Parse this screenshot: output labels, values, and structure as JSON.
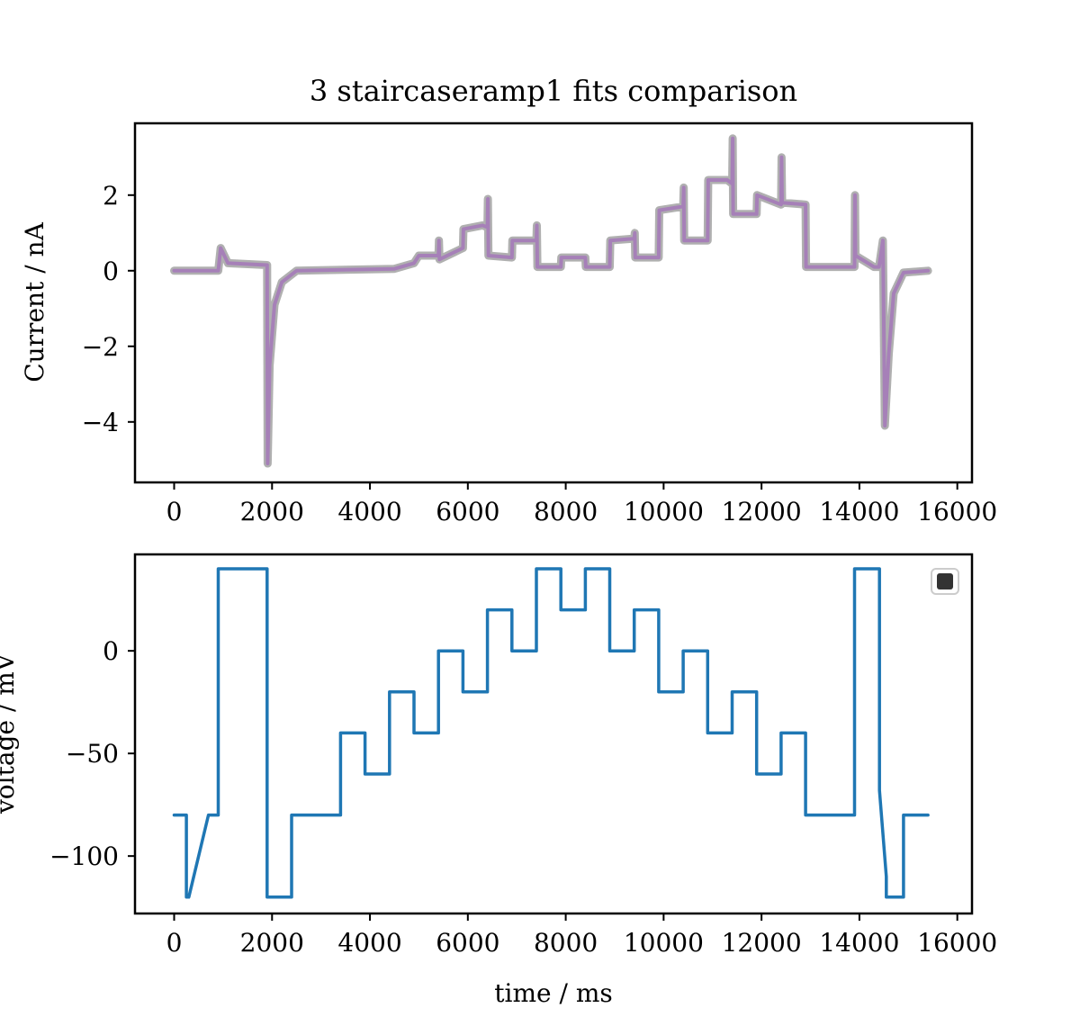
{
  "title": "3 staircaseramp1 fits comparison",
  "chart_data": [
    {
      "type": "line",
      "panel": "top",
      "xlim": [
        -800,
        16300
      ],
      "ylim": [
        -5.6,
        3.9
      ],
      "xticks": [
        0,
        2000,
        4000,
        6000,
        8000,
        10000,
        12000,
        14000,
        16000
      ],
      "yticks": [
        -4,
        -2,
        0,
        2
      ],
      "ytick_labels": [
        "−4",
        "−2",
        "0",
        "2"
      ],
      "xlabel": "",
      "ylabel": "Current / nA",
      "series": [
        {
          "name": "",
          "color": "#b0b0b0",
          "points": [
            [
              0,
              0
            ],
            [
              900,
              0
            ],
            [
              950,
              0.6
            ],
            [
              1100,
              0.2
            ],
            [
              1900,
              0.15
            ],
            [
              1910,
              -5.1
            ],
            [
              1950,
              -2.5
            ],
            [
              2050,
              -0.9
            ],
            [
              2200,
              -0.3
            ],
            [
              2500,
              0
            ],
            [
              4500,
              0.05
            ],
            [
              4900,
              0.2
            ],
            [
              5000,
              0.4
            ],
            [
              5400,
              0.4
            ],
            [
              5410,
              0.8
            ],
            [
              5420,
              0.3
            ],
            [
              5900,
              0.6
            ],
            [
              5910,
              1.1
            ],
            [
              6300,
              1.2
            ],
            [
              6400,
              1.15
            ],
            [
              6410,
              1.9
            ],
            [
              6420,
              0.4
            ],
            [
              6900,
              0.35
            ],
            [
              6910,
              0.8
            ],
            [
              7400,
              0.8
            ],
            [
              7410,
              1.2
            ],
            [
              7420,
              0.1
            ],
            [
              7900,
              0.1
            ],
            [
              7910,
              0.35
            ],
            [
              8400,
              0.35
            ],
            [
              8410,
              0.1
            ],
            [
              8900,
              0.1
            ],
            [
              8910,
              0.8
            ],
            [
              9400,
              0.85
            ],
            [
              9410,
              1.0
            ],
            [
              9420,
              0.35
            ],
            [
              9900,
              0.35
            ],
            [
              9910,
              1.6
            ],
            [
              10400,
              1.7
            ],
            [
              10410,
              2.2
            ],
            [
              10420,
              0.8
            ],
            [
              10900,
              0.8
            ],
            [
              10910,
              2.4
            ],
            [
              11300,
              2.4
            ],
            [
              11400,
              2.3
            ],
            [
              11410,
              3.5
            ],
            [
              11420,
              1.5
            ],
            [
              11900,
              1.5
            ],
            [
              11910,
              2.0
            ],
            [
              12400,
              1.75
            ],
            [
              12410,
              3.0
            ],
            [
              12420,
              1.8
            ],
            [
              12900,
              1.75
            ],
            [
              12910,
              0.1
            ],
            [
              13900,
              0.1
            ],
            [
              13910,
              2.0
            ],
            [
              13920,
              0.4
            ],
            [
              14300,
              0.1
            ],
            [
              14400,
              0.1
            ],
            [
              14480,
              0.8
            ],
            [
              14520,
              -4.1
            ],
            [
              14600,
              -2.2
            ],
            [
              14700,
              -0.6
            ],
            [
              14900,
              -0.05
            ],
            [
              15400,
              0
            ]
          ]
        },
        {
          "name": "",
          "color": "#a680b8",
          "points": [
            [
              0,
              0
            ],
            [
              900,
              0
            ],
            [
              950,
              0.6
            ],
            [
              1100,
              0.2
            ],
            [
              1900,
              0.15
            ],
            [
              1910,
              -5.1
            ],
            [
              1950,
              -2.5
            ],
            [
              2050,
              -0.9
            ],
            [
              2200,
              -0.3
            ],
            [
              2500,
              0
            ],
            [
              4500,
              0.05
            ],
            [
              4900,
              0.2
            ],
            [
              5000,
              0.4
            ],
            [
              5400,
              0.4
            ],
            [
              5410,
              0.8
            ],
            [
              5420,
              0.3
            ],
            [
              5900,
              0.6
            ],
            [
              5910,
              1.1
            ],
            [
              6300,
              1.2
            ],
            [
              6400,
              1.15
            ],
            [
              6410,
              1.9
            ],
            [
              6420,
              0.4
            ],
            [
              6900,
              0.35
            ],
            [
              6910,
              0.8
            ],
            [
              7400,
              0.8
            ],
            [
              7410,
              1.2
            ],
            [
              7420,
              0.1
            ],
            [
              7900,
              0.1
            ],
            [
              7910,
              0.35
            ],
            [
              8400,
              0.35
            ],
            [
              8410,
              0.1
            ],
            [
              8900,
              0.1
            ],
            [
              8910,
              0.8
            ],
            [
              9400,
              0.85
            ],
            [
              9410,
              1.0
            ],
            [
              9420,
              0.35
            ],
            [
              9900,
              0.35
            ],
            [
              9910,
              1.6
            ],
            [
              10400,
              1.7
            ],
            [
              10410,
              2.2
            ],
            [
              10420,
              0.8
            ],
            [
              10900,
              0.8
            ],
            [
              10910,
              2.4
            ],
            [
              11300,
              2.4
            ],
            [
              11400,
              2.3
            ],
            [
              11410,
              3.5
            ],
            [
              11420,
              1.5
            ],
            [
              11900,
              1.5
            ],
            [
              11910,
              2.0
            ],
            [
              12400,
              1.75
            ],
            [
              12410,
              3.0
            ],
            [
              12420,
              1.8
            ],
            [
              12900,
              1.75
            ],
            [
              12910,
              0.1
            ],
            [
              13900,
              0.1
            ],
            [
              13910,
              2.0
            ],
            [
              13920,
              0.4
            ],
            [
              14300,
              0.1
            ],
            [
              14400,
              0.1
            ],
            [
              14480,
              0.8
            ],
            [
              14520,
              -4.1
            ],
            [
              14600,
              -2.2
            ],
            [
              14700,
              -0.6
            ],
            [
              14900,
              -0.05
            ],
            [
              15400,
              0
            ]
          ]
        }
      ]
    },
    {
      "type": "line",
      "panel": "bottom",
      "xlim": [
        -800,
        16300
      ],
      "ylim": [
        -128,
        47
      ],
      "xticks": [
        0,
        2000,
        4000,
        6000,
        8000,
        10000,
        12000,
        14000,
        16000
      ],
      "yticks": [
        -100,
        -50,
        0
      ],
      "ytick_labels": [
        "−100",
        "−50",
        "0"
      ],
      "xlabel": "time / ms",
      "ylabel": "voltage / mV",
      "legend": "top-right",
      "legend_color": "#333333",
      "series": [
        {
          "name": "",
          "color": "#1f77b4",
          "points": [
            [
              0,
              -80
            ],
            [
              250,
              -80
            ],
            [
              250,
              -120
            ],
            [
              300,
              -120
            ],
            [
              700,
              -80
            ],
            [
              900,
              -80
            ],
            [
              900,
              40
            ],
            [
              1900,
              40
            ],
            [
              1900,
              -120
            ],
            [
              2400,
              -120
            ],
            [
              2400,
              -80
            ],
            [
              3400,
              -80
            ],
            [
              3400,
              -40
            ],
            [
              3900,
              -40
            ],
            [
              3900,
              -60
            ],
            [
              4400,
              -60
            ],
            [
              4400,
              -20
            ],
            [
              4900,
              -20
            ],
            [
              4900,
              -40
            ],
            [
              5400,
              -40
            ],
            [
              5400,
              0
            ],
            [
              5900,
              0
            ],
            [
              5900,
              -20
            ],
            [
              6400,
              -20
            ],
            [
              6400,
              20
            ],
            [
              6900,
              20
            ],
            [
              6900,
              0
            ],
            [
              7400,
              0
            ],
            [
              7400,
              40
            ],
            [
              7900,
              40
            ],
            [
              7900,
              20
            ],
            [
              8400,
              20
            ],
            [
              8400,
              40
            ],
            [
              8900,
              40
            ],
            [
              8900,
              0
            ],
            [
              9400,
              0
            ],
            [
              9400,
              20
            ],
            [
              9900,
              20
            ],
            [
              9900,
              -20
            ],
            [
              10400,
              -20
            ],
            [
              10400,
              0
            ],
            [
              10900,
              0
            ],
            [
              10900,
              -40
            ],
            [
              11400,
              -40
            ],
            [
              11400,
              -20
            ],
            [
              11900,
              -20
            ],
            [
              11900,
              -60
            ],
            [
              12400,
              -60
            ],
            [
              12400,
              -40
            ],
            [
              12900,
              -40
            ],
            [
              12900,
              -80
            ],
            [
              13900,
              -80
            ],
            [
              13900,
              40
            ],
            [
              14410,
              40
            ],
            [
              14410,
              -68
            ],
            [
              14550,
              -110
            ],
            [
              14550,
              -120
            ],
            [
              14900,
              -120
            ],
            [
              14900,
              -80
            ],
            [
              15400,
              -80
            ]
          ]
        }
      ]
    }
  ]
}
